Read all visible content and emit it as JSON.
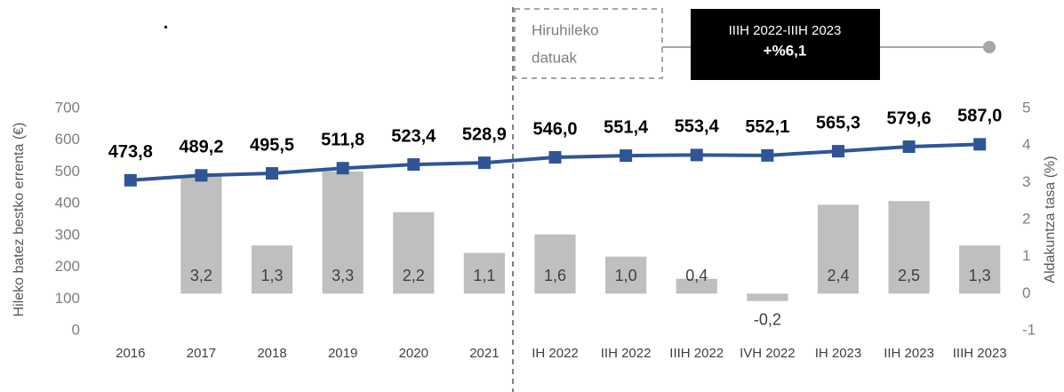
{
  "chart_data": {
    "type": "combo",
    "categories": [
      "2016",
      "2017",
      "2018",
      "2019",
      "2020",
      "2021",
      "IH 2022",
      "IIH 2022",
      "IIIH 2022",
      "IVH 2022",
      "IH 2023",
      "IIH 2023",
      "IIIH 2023"
    ],
    "series": [
      {
        "name": "Hileko batez bestko errenta (€)",
        "type": "line",
        "color": "#2f5597",
        "axis": "y",
        "values": [
          473.8,
          489.2,
          495.5,
          511.8,
          523.4,
          528.9,
          546.0,
          551.4,
          553.4,
          552.1,
          565.3,
          579.6,
          587.0
        ],
        "value_labels": [
          "473,8",
          "489,2",
          "495,5",
          "511,8",
          "523,4",
          "528,9",
          "546,0",
          "551,4",
          "553,4",
          "552,1",
          "565,3",
          "579,6",
          "587,0"
        ]
      },
      {
        "name": "Aldakuntza tasa (%)",
        "type": "bar",
        "color": "#bfbfbf",
        "axis": "y2",
        "values": [
          null,
          3.2,
          1.3,
          3.3,
          2.2,
          1.1,
          1.6,
          1.0,
          0.4,
          -0.2,
          2.4,
          2.5,
          1.3
        ],
        "value_labels": [
          null,
          "3,2",
          "1,3",
          "3,3",
          "2,2",
          "1,1",
          "1,6",
          "1,0",
          "0,4",
          "-0,2",
          "2,4",
          "2,5",
          "1,3"
        ]
      }
    ],
    "ylabel": "Hileko batez bestko errenta (€)",
    "y2label": "Aldakuntza tasa (%)",
    "ylim": [
      0,
      700
    ],
    "yticks": [
      0,
      100,
      200,
      300,
      400,
      500,
      600,
      700
    ],
    "y2lim": [
      -1,
      5
    ],
    "y2ticks": [
      -1,
      0,
      1,
      2,
      3,
      4,
      5
    ],
    "box_label": [
      "Hiruhileko",
      "datuak"
    ],
    "highlight": {
      "period": "IIIH 2022-IIIH 2023",
      "change": "+%6,1"
    },
    "grid": false
  }
}
